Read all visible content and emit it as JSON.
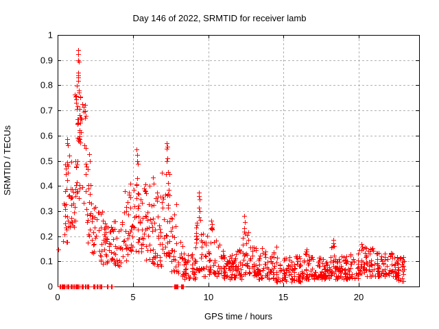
{
  "chart_data": {
    "type": "scatter",
    "title": "Day 146 of 2022, SRMTID for receiver lamb",
    "xlabel": "GPS time / hours",
    "ylabel": "SRMTID / TECUs",
    "xlim": [
      0,
      24
    ],
    "ylim": [
      0,
      1
    ],
    "xticks": [
      0,
      5,
      10,
      15,
      20
    ],
    "xtick_labels": [
      "0",
      "5",
      "10",
      "15",
      "20"
    ],
    "yticks": [
      0,
      0.1,
      0.2,
      0.3,
      0.4,
      0.5,
      0.6,
      0.7,
      0.8,
      0.9,
      1
    ],
    "ytick_labels": [
      "0",
      "0.1",
      "0.2",
      "0.3",
      "0.4",
      "0.5",
      "0.6",
      "0.7",
      "0.8",
      "0.9",
      "1"
    ],
    "grid": {
      "show": true,
      "color": "#b0b0b0",
      "dash": [
        3,
        3
      ]
    },
    "border_color": "#000000",
    "text_color": "#000000",
    "background": "#ffffff",
    "legend": "none",
    "marker": {
      "shape": "plus",
      "color": "#ff0000",
      "size": 7
    },
    "series": [
      {
        "name": "SRMTID",
        "seed": 146,
        "notable_points": [
          [
            0.05,
            0.148
          ],
          [
            0.62,
            0.585
          ],
          [
            0.66,
            0.57
          ],
          [
            0.7,
            0.56
          ],
          [
            1.35,
            0.94
          ],
          [
            1.38,
            0.925
          ],
          [
            1.36,
            0.9
          ],
          [
            1.39,
            0.893
          ],
          [
            1.37,
            0.85
          ],
          [
            1.36,
            0.818
          ],
          [
            1.33,
            0.59
          ],
          [
            1.36,
            0.583
          ],
          [
            1.4,
            0.578
          ],
          [
            2.08,
            0.525
          ],
          [
            2.13,
            0.5
          ],
          [
            2.73,
            0.295
          ],
          [
            5.25,
            0.545
          ],
          [
            5.3,
            0.523
          ],
          [
            5.27,
            0.5
          ],
          [
            5.33,
            0.488
          ],
          [
            7.24,
            0.57
          ],
          [
            7.27,
            0.556
          ],
          [
            7.25,
            0.548
          ],
          [
            7.3,
            0.51
          ],
          [
            7.22,
            0.5
          ],
          [
            7.33,
            0.455
          ],
          [
            7.2,
            0.448
          ],
          [
            9.38,
            0.372
          ],
          [
            9.4,
            0.36
          ],
          [
            9.42,
            0.345
          ],
          [
            9.36,
            0.312
          ],
          [
            9.44,
            0.3
          ],
          [
            9.4,
            0.275
          ],
          [
            10.2,
            0.262
          ],
          [
            10.23,
            0.247
          ],
          [
            10.18,
            0.232
          ],
          [
            12.38,
            0.28
          ],
          [
            12.42,
            0.256
          ],
          [
            12.4,
            0.232
          ],
          [
            12.45,
            0.21
          ],
          [
            16.52,
            0.148
          ],
          [
            16.55,
            0.138
          ],
          [
            18.3,
            0.186
          ],
          [
            18.33,
            0.172
          ],
          [
            18.28,
            0.158
          ],
          [
            20.18,
            0.168
          ],
          [
            20.22,
            0.158
          ],
          [
            20.25,
            0.15
          ],
          [
            20.92,
            0.152
          ],
          [
            20.95,
            0.143
          ],
          [
            22.6,
            0.035
          ],
          [
            22.62,
            0.025
          ]
        ],
        "zero_value_runs": [
          [
            0.08,
            1.7,
            52
          ],
          [
            1.78,
            1.88,
            4
          ],
          [
            1.95,
            2.07,
            5
          ],
          [
            2.33,
            2.46,
            5
          ],
          [
            2.6,
            2.67,
            3
          ],
          [
            2.74,
            2.9,
            6
          ],
          [
            3.22,
            3.32,
            3
          ],
          [
            3.5,
            3.6,
            3
          ],
          [
            7.7,
            8.0,
            8
          ],
          [
            8.18,
            8.32,
            5
          ]
        ],
        "density_clusters": [
          [
            0.35,
            0.7,
            10,
            0.17,
            0.34,
            1.2
          ],
          [
            0.5,
            0.95,
            20,
            0.22,
            0.5,
            1.2
          ],
          [
            0.55,
            0.85,
            6,
            0.42,
            0.56,
            1.0
          ],
          [
            0.9,
            1.2,
            13,
            0.22,
            0.47,
            1.2
          ],
          [
            1.15,
            1.52,
            22,
            0.58,
            0.78,
            1.0
          ],
          [
            1.15,
            1.52,
            12,
            0.34,
            0.58,
            1.1
          ],
          [
            1.28,
            1.42,
            3,
            0.79,
            0.87,
            1.0
          ],
          [
            1.45,
            1.85,
            14,
            0.6,
            0.77,
            1.0
          ],
          [
            1.45,
            1.92,
            10,
            0.3,
            0.58,
            1.2
          ],
          [
            1.85,
            2.25,
            8,
            0.33,
            0.5,
            1.2
          ],
          [
            1.85,
            2.32,
            12,
            0.17,
            0.33,
            1.1
          ],
          [
            2.25,
            2.65,
            15,
            0.13,
            0.38,
            1.5
          ],
          [
            2.6,
            3.05,
            13,
            0.1,
            0.3,
            1.5
          ],
          [
            3.02,
            3.65,
            32,
            0.08,
            0.27,
            1.7
          ],
          [
            3.6,
            4.35,
            30,
            0.08,
            0.3,
            1.8
          ],
          [
            4.3,
            4.85,
            24,
            0.1,
            0.38,
            1.5
          ],
          [
            4.8,
            5.4,
            30,
            0.14,
            0.46,
            1.4
          ],
          [
            5.35,
            5.85,
            22,
            0.12,
            0.4,
            1.5
          ],
          [
            5.8,
            6.35,
            26,
            0.1,
            0.44,
            1.6
          ],
          [
            6.3,
            6.95,
            34,
            0.08,
            0.42,
            1.7
          ],
          [
            6.9,
            7.45,
            30,
            0.12,
            0.46,
            1.5
          ],
          [
            7.4,
            8.05,
            26,
            0.06,
            0.35,
            1.8
          ],
          [
            8.0,
            8.45,
            15,
            0.03,
            0.2,
            1.8
          ],
          [
            8.4,
            9.15,
            35,
            0.03,
            0.13,
            1.4
          ],
          [
            9.15,
            9.6,
            24,
            0.06,
            0.28,
            1.7
          ],
          [
            9.55,
            10.05,
            16,
            0.04,
            0.22,
            1.7
          ],
          [
            10.0,
            10.55,
            26,
            0.05,
            0.24,
            1.7
          ],
          [
            10.5,
            11.05,
            22,
            0.04,
            0.18,
            1.6
          ],
          [
            11.0,
            11.6,
            35,
            0.03,
            0.13,
            1.4
          ],
          [
            11.55,
            12.25,
            42,
            0.03,
            0.15,
            1.5
          ],
          [
            12.25,
            12.7,
            24,
            0.05,
            0.22,
            1.7
          ],
          [
            12.65,
            13.35,
            28,
            0.04,
            0.18,
            1.7
          ],
          [
            13.3,
            14.55,
            55,
            0.03,
            0.16,
            1.6
          ],
          [
            14.5,
            16.25,
            85,
            0.02,
            0.12,
            1.4
          ],
          [
            16.2,
            16.7,
            26,
            0.03,
            0.15,
            1.6
          ],
          [
            16.65,
            18.15,
            75,
            0.03,
            0.12,
            1.4
          ],
          [
            18.1,
            18.5,
            20,
            0.04,
            0.17,
            1.6
          ],
          [
            18.45,
            19.95,
            75,
            0.03,
            0.13,
            1.4
          ],
          [
            19.9,
            20.55,
            32,
            0.05,
            0.16,
            1.5
          ],
          [
            20.5,
            21.25,
            28,
            0.04,
            0.15,
            1.5
          ],
          [
            21.2,
            22.45,
            60,
            0.04,
            0.14,
            1.4
          ],
          [
            22.4,
            23.0,
            35,
            0.02,
            0.13,
            1.3
          ]
        ]
      }
    ]
  }
}
